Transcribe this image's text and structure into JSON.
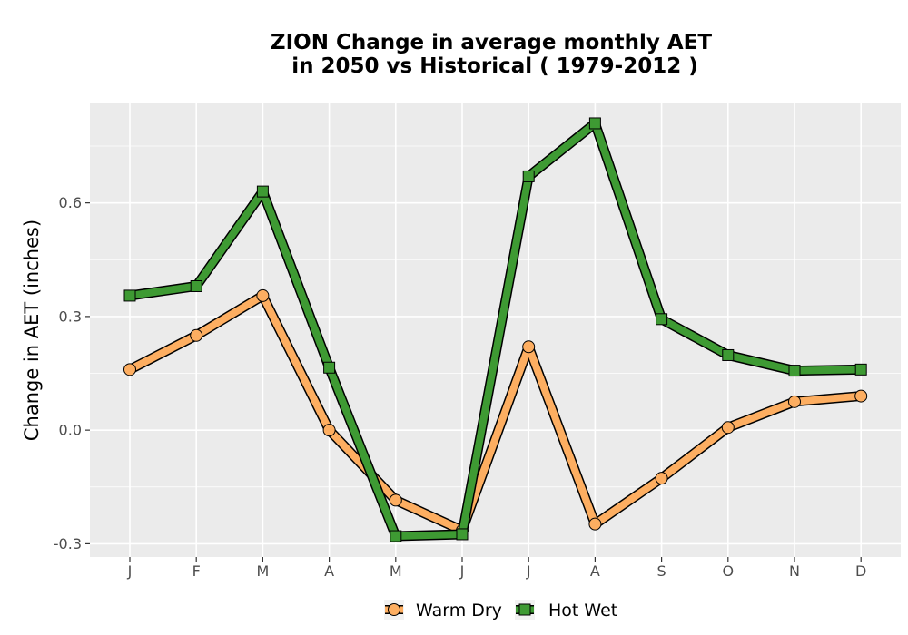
{
  "chart_data": {
    "type": "line",
    "title_line1": "ZION  Change in average monthly AET",
    "title_line2": "in 2050 vs Historical ( 1979-2012 )",
    "xlabel": "",
    "ylabel": "Change in AET (inches)",
    "categories": [
      "J",
      "F",
      "M",
      "A",
      "M",
      "J",
      "J",
      "A",
      "S",
      "O",
      "N",
      "D"
    ],
    "y_ticks": [
      -0.3,
      0.0,
      0.3,
      0.6
    ],
    "y_tick_labels": [
      "-0.3",
      "0.0",
      "0.3",
      "0.6"
    ],
    "ylim": [
      -0.335,
      0.865
    ],
    "grid": true,
    "legend_position": "bottom",
    "series": [
      {
        "name": "Warm Dry",
        "marker": "circle",
        "color": "#fdae61",
        "values": [
          0.16,
          0.25,
          0.355,
          0.0,
          -0.185,
          -0.265,
          0.22,
          -0.248,
          -0.127,
          0.007,
          0.075,
          0.09
        ]
      },
      {
        "name": "Hot Wet",
        "marker": "square",
        "color": "#3e9a33",
        "values": [
          0.355,
          0.38,
          0.63,
          0.165,
          -0.28,
          -0.275,
          0.67,
          0.81,
          0.293,
          0.198,
          0.157,
          0.16
        ]
      }
    ]
  }
}
